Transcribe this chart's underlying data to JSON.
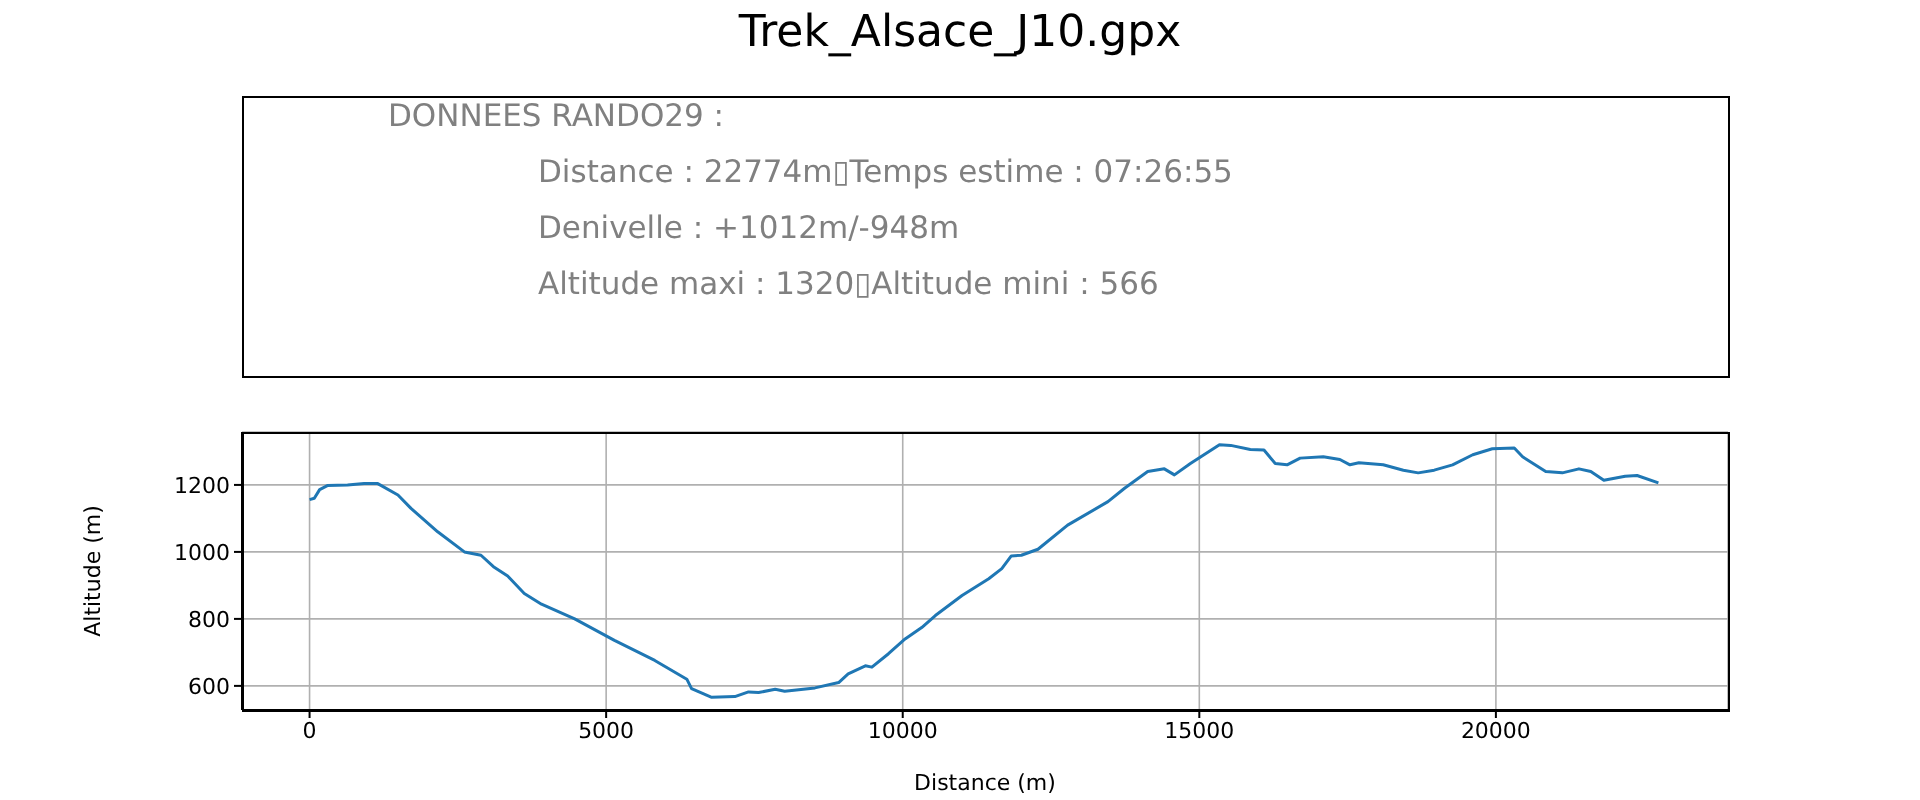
{
  "chart_data": [
    {
      "type": "other",
      "title": "Trek_Alsace_J10.gpx",
      "annotations": [
        "DONNEES RANDO29  :",
        "Distance : 22774m▯Temps estime : 07:26:55",
        "Denivelle : +1012m/-948m",
        "Altitude maxi : 1320▯Altitude mini : 566"
      ]
    },
    {
      "type": "line",
      "xlabel": "Distance (m)",
      "ylabel": "Altitude (m)",
      "xlim": [
        -1139,
        23913
      ],
      "ylim": [
        528,
        1358
      ],
      "xticks": [
        0,
        5000,
        10000,
        15000,
        20000
      ],
      "yticks": [
        600,
        800,
        1000,
        1200
      ],
      "grid": true,
      "marker": "none",
      "line_style": "solid",
      "x": [
        0,
        80,
        170,
        300,
        640,
        920,
        1150,
        1490,
        1710,
        2160,
        2610,
        2890,
        3100,
        3340,
        3620,
        3910,
        4470,
        5140,
        5820,
        6360,
        6440,
        6780,
        7170,
        7400,
        7570,
        7850,
        8010,
        8520,
        8920,
        9080,
        9370,
        9480,
        9760,
        10040,
        10320,
        10550,
        11000,
        11450,
        11670,
        11830,
        12000,
        12280,
        12780,
        13460,
        13740,
        14130,
        14410,
        14580,
        14850,
        15340,
        15530,
        15860,
        16090,
        16280,
        16480,
        16700,
        17090,
        17370,
        17540,
        17690,
        18100,
        18440,
        18690,
        18960,
        19270,
        19610,
        19940,
        20310,
        20450,
        20840,
        21120,
        21400,
        21600,
        21820,
        22180,
        22380,
        22740
      ],
      "series": [
        {
          "color": "#1f77b4",
          "values": [
            1156,
            1160,
            1186,
            1198,
            1200,
            1204,
            1204,
            1170,
            1130,
            1060,
            1000,
            990,
            956,
            928,
            876,
            844,
            800,
            736,
            676,
            620,
            592,
            566,
            568,
            582,
            580,
            590,
            584,
            594,
            610,
            636,
            660,
            656,
            696,
            740,
            774,
            810,
            870,
            920,
            950,
            988,
            990,
            1008,
            1080,
            1150,
            1190,
            1240,
            1248,
            1230,
            1264,
            1320,
            1318,
            1306,
            1304,
            1264,
            1260,
            1280,
            1284,
            1276,
            1260,
            1266,
            1260,
            1244,
            1236,
            1244,
            1260,
            1290,
            1308,
            1310,
            1284,
            1240,
            1236,
            1248,
            1240,
            1214,
            1226,
            1228,
            1206
          ]
        }
      ]
    }
  ]
}
